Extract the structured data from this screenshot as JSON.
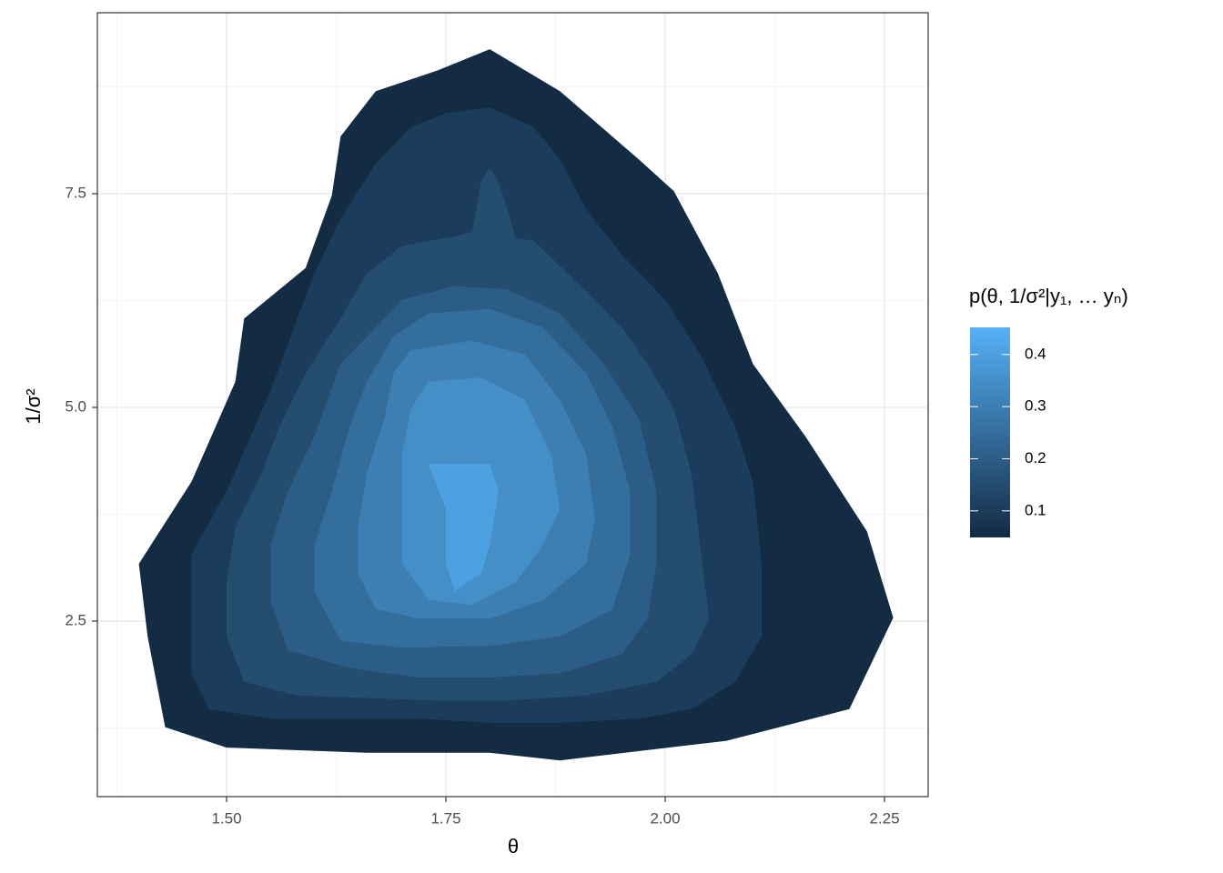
{
  "chart_data": {
    "type": "contour",
    "x_label": "θ",
    "y_label": "1/σ²",
    "legend_title": "p(θ, 1/σ²|y₁,  … yₙ)",
    "xlim": [
      1.3527,
      2.2998
    ],
    "ylim": [
      0.447,
      9.617
    ],
    "xticks": [
      {
        "value": 1.5,
        "label": "1.50"
      },
      {
        "value": 1.75,
        "label": "1.75"
      },
      {
        "value": 2.0,
        "label": "2.00"
      },
      {
        "value": 2.25,
        "label": "2.25"
      }
    ],
    "yticks": [
      {
        "value": 2.5,
        "label": "2.5"
      },
      {
        "value": 5.0,
        "label": "5.0"
      },
      {
        "value": 7.5,
        "label": "7.5"
      }
    ],
    "xminor": [
      1.375,
      1.625,
      1.875,
      2.125
    ],
    "yminor": [
      1.25,
      3.75,
      6.25,
      8.75
    ],
    "grid": true,
    "colorbar": {
      "lim": [
        0.049,
        0.452
      ],
      "ticks": [
        0.1,
        0.2,
        0.3,
        0.4
      ],
      "colors": [
        "#132B43",
        "#56B1F7"
      ]
    },
    "levels": [
      {
        "level": 0.05,
        "x": [
          1.8,
          1.88,
          1.97,
          2.01,
          2.06,
          2.1,
          2.16,
          2.23,
          2.26,
          2.21,
          2.07,
          1.88,
          1.8,
          1.66,
          1.5,
          1.43,
          1.41,
          1.4,
          1.46,
          1.51,
          1.52,
          1.59,
          1.62,
          1.63,
          1.67,
          1.74
        ],
        "y": [
          9.19,
          8.7,
          7.9,
          7.53,
          6.57,
          5.51,
          4.66,
          3.55,
          2.54,
          1.47,
          1.1,
          0.87,
          0.96,
          0.96,
          1.02,
          1.26,
          2.32,
          3.17,
          4.13,
          5.3,
          6.04,
          6.63,
          7.48,
          8.17,
          8.7,
          8.94
        ]
      },
      {
        "level": 0.1,
        "x": [
          1.75,
          1.8,
          1.85,
          1.88,
          1.91,
          1.95,
          2.0,
          2.04,
          2.08,
          2.1,
          2.11,
          2.11,
          2.08,
          2.03,
          1.97,
          1.88,
          1.8,
          1.72,
          1.55,
          1.48,
          1.46,
          1.46,
          1.46,
          1.5,
          1.55,
          1.6,
          1.63,
          1.67,
          1.71
        ],
        "y": [
          8.44,
          8.51,
          8.28,
          7.9,
          7.32,
          6.79,
          6.26,
          5.62,
          4.77,
          4.13,
          3.17,
          2.32,
          1.79,
          1.47,
          1.36,
          1.31,
          1.31,
          1.36,
          1.36,
          1.47,
          1.89,
          2.53,
          3.28,
          4.02,
          5.19,
          6.57,
          7.21,
          7.85,
          8.28
        ]
      },
      {
        "level": 0.15,
        "x": [
          1.76,
          1.78,
          1.79,
          1.8,
          1.81,
          1.82,
          1.83,
          1.85,
          1.91,
          1.95,
          1.98,
          2.01,
          2.03,
          2.04,
          2.05,
          2.03,
          1.99,
          1.91,
          1.82,
          1.74,
          1.66,
          1.58,
          1.52,
          1.5,
          1.5,
          1.51,
          1.54,
          1.56,
          1.59,
          1.63,
          1.66,
          1.7
        ],
        "y": [
          7.0,
          7.05,
          7.64,
          7.8,
          7.64,
          7.32,
          6.98,
          6.95,
          6.36,
          5.94,
          5.51,
          4.98,
          4.23,
          3.38,
          2.53,
          2.11,
          1.79,
          1.63,
          1.57,
          1.57,
          1.6,
          1.63,
          1.79,
          2.32,
          2.96,
          3.6,
          4.23,
          4.77,
          5.4,
          6.04,
          6.57,
          6.89
        ]
      },
      {
        "level": 0.2,
        "x": [
          1.7,
          1.76,
          1.82,
          1.88,
          1.93,
          1.97,
          1.99,
          1.99,
          1.98,
          1.95,
          1.88,
          1.8,
          1.72,
          1.64,
          1.57,
          1.55,
          1.55,
          1.57,
          1.6,
          1.63,
          1.68
        ],
        "y": [
          6.26,
          6.42,
          6.38,
          6.1,
          5.51,
          4.87,
          4.02,
          3.17,
          2.53,
          2.11,
          1.89,
          1.84,
          1.84,
          1.95,
          2.16,
          2.74,
          3.38,
          4.02,
          4.66,
          5.51,
          6.04
        ]
      },
      {
        "level": 0.25,
        "x": [
          1.73,
          1.8,
          1.86,
          1.91,
          1.94,
          1.96,
          1.96,
          1.94,
          1.88,
          1.8,
          1.7,
          1.63,
          1.6,
          1.6,
          1.62,
          1.64,
          1.66,
          1.69
        ],
        "y": [
          6.1,
          6.15,
          5.94,
          5.4,
          4.77,
          4.02,
          3.28,
          2.64,
          2.32,
          2.21,
          2.19,
          2.27,
          2.85,
          3.38,
          4.02,
          4.77,
          5.3,
          5.83
        ]
      },
      {
        "level": 0.3,
        "x": [
          1.71,
          1.78,
          1.84,
          1.88,
          1.91,
          1.92,
          1.91,
          1.86,
          1.8,
          1.72,
          1.67,
          1.65,
          1.65,
          1.66,
          1.68,
          1.69
        ],
        "y": [
          5.67,
          5.78,
          5.62,
          5.09,
          4.45,
          3.7,
          3.17,
          2.74,
          2.53,
          2.53,
          2.64,
          3.06,
          3.6,
          4.23,
          4.87,
          5.4
        ]
      },
      {
        "level": 0.35,
        "x": [
          1.73,
          1.79,
          1.84,
          1.87,
          1.88,
          1.86,
          1.83,
          1.78,
          1.73,
          1.7,
          1.7,
          1.7,
          1.71
        ],
        "y": [
          5.3,
          5.35,
          5.09,
          4.45,
          3.81,
          3.38,
          2.96,
          2.69,
          2.75,
          3.17,
          3.81,
          4.45,
          4.98
        ]
      },
      {
        "level": 0.4,
        "x": [
          1.73,
          1.8,
          1.81,
          1.8,
          1.79,
          1.76,
          1.75,
          1.75
        ],
        "y": [
          4.34,
          4.34,
          4.02,
          3.38,
          3.06,
          2.85,
          3.17,
          3.81
        ]
      }
    ]
  }
}
